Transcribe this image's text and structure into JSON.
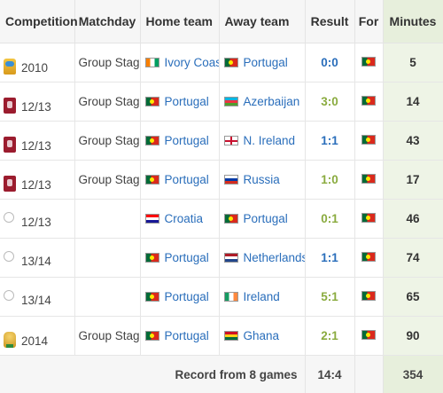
{
  "headers": {
    "competition": "Competition",
    "matchday": "Matchday",
    "home_team": "Home team",
    "away_team": "Away team",
    "result": "Result",
    "for": "For",
    "minutes": "Minutes"
  },
  "rows": [
    {
      "competition_icon": "world-cup-logo",
      "season": "2010",
      "matchday": "Group Stage",
      "home": "Ivory Coast",
      "home_flag": "ivory-coast-flag",
      "away": "Portugal",
      "away_flag": "portugal-flag",
      "result": "0:0",
      "result_color": "#2a6ebb",
      "for_flag": "portugal-flag",
      "minutes": "5"
    },
    {
      "competition_icon": "qualifiers-logo",
      "season": "12/13",
      "matchday": "Group Stage",
      "home": "Portugal",
      "home_flag": "portugal-flag",
      "away": "Azerbaijan",
      "away_flag": "azerbaijan-flag",
      "result": "3:0",
      "result_color": "#8aab3f",
      "for_flag": "portugal-flag",
      "minutes": "14"
    },
    {
      "competition_icon": "qualifiers-logo",
      "season": "12/13",
      "matchday": "Group Stage",
      "home": "Portugal",
      "home_flag": "portugal-flag",
      "away": "N. Ireland",
      "away_flag": "northern-ireland-flag",
      "result": "1:1",
      "result_color": "#2a6ebb",
      "for_flag": "portugal-flag",
      "minutes": "43"
    },
    {
      "competition_icon": "qualifiers-logo",
      "season": "12/13",
      "matchday": "Group Stage",
      "home": "Portugal",
      "home_flag": "portugal-flag",
      "away": "Russia",
      "away_flag": "russia-flag",
      "result": "1:0",
      "result_color": "#8aab3f",
      "for_flag": "portugal-flag",
      "minutes": "17"
    },
    {
      "competition_icon": "friendly-ball-icon",
      "season": "12/13",
      "matchday": "",
      "home": "Croatia",
      "home_flag": "croatia-flag",
      "away": "Portugal",
      "away_flag": "portugal-flag",
      "result": "0:1",
      "result_color": "#8aab3f",
      "for_flag": "portugal-flag",
      "minutes": "46"
    },
    {
      "competition_icon": "friendly-ball-icon",
      "season": "13/14",
      "matchday": "",
      "home": "Portugal",
      "home_flag": "portugal-flag",
      "away": "Netherlands",
      "away_flag": "netherlands-flag",
      "result": "1:1",
      "result_color": "#2a6ebb",
      "for_flag": "portugal-flag",
      "minutes": "74"
    },
    {
      "competition_icon": "friendly-ball-icon",
      "season": "13/14",
      "matchday": "",
      "home": "Portugal",
      "home_flag": "portugal-flag",
      "away": "Ireland",
      "away_flag": "ireland-flag",
      "result": "5:1",
      "result_color": "#8aab3f",
      "for_flag": "portugal-flag",
      "minutes": "65"
    },
    {
      "competition_icon": "world-cup-trophy-logo",
      "season": "2014",
      "matchday": "Group Stage",
      "home": "Portugal",
      "home_flag": "portugal-flag",
      "away": "Ghana",
      "away_flag": "ghana-flag",
      "result": "2:1",
      "result_color": "#8aab3f",
      "for_flag": "portugal-flag",
      "minutes": "90"
    }
  ],
  "footer": {
    "record_label": "Record from 8 games",
    "goals": "14:4",
    "total_minutes": "354"
  }
}
